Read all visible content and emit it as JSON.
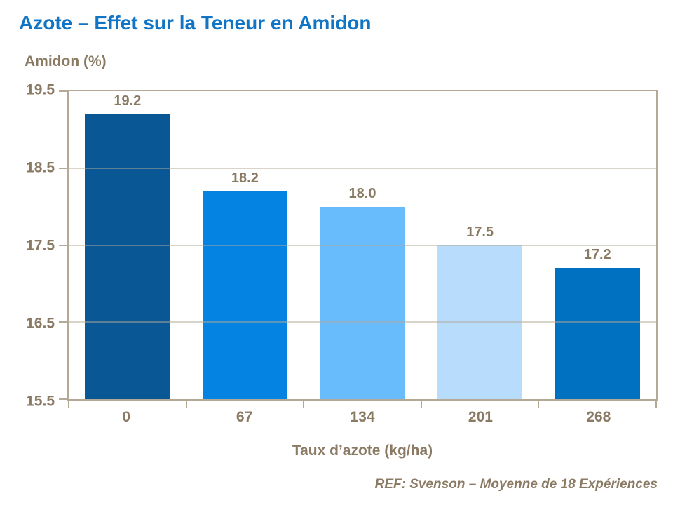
{
  "slide": {
    "footer": "REF: Svenson – Moyenne de 18 Expériences"
  },
  "chart_data": {
    "type": "bar",
    "title": "Azote – Effet sur la Teneur en Amidon",
    "ylabel": "Amidon (%)",
    "xlabel": "Taux d’azote (kg/ha)",
    "categories": [
      "0",
      "67",
      "134",
      "201",
      "268"
    ],
    "values": [
      19.2,
      18.2,
      18.0,
      17.5,
      17.2
    ],
    "data_labels": [
      "19.2",
      "18.2",
      "18.0",
      "17.5",
      "17.2"
    ],
    "bar_colors": [
      "#0a5796",
      "#0583e3",
      "#69bcfc",
      "#b7dcfc",
      "#0070c0"
    ],
    "ylim": [
      15.5,
      19.5
    ],
    "yticks": [
      19.5,
      18.5,
      17.5,
      16.5,
      15.5
    ],
    "ytick_labels": [
      "19.5",
      "18.5",
      "17.5",
      "16.5",
      "15.5"
    ],
    "grid": "horizontal-interior",
    "legend": "none",
    "colors": {
      "title_blue": "#1274c5",
      "label_brown": "#8a7a63",
      "axis_taupe": "#b3a996",
      "background": "#ffffff"
    }
  }
}
